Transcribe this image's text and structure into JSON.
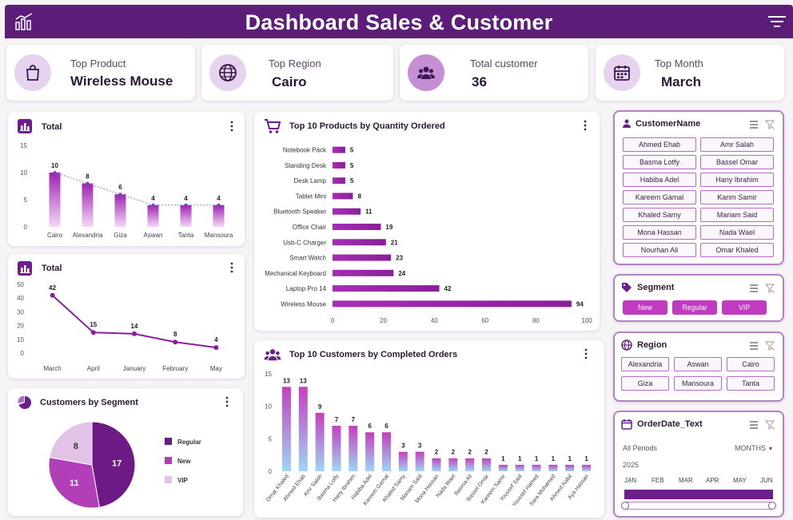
{
  "header": {
    "title": "Dashboard Sales & Customer"
  },
  "kpis": [
    {
      "label": "Top Product",
      "value": "Wireless Mouse",
      "icon": "shopping-bag-icon"
    },
    {
      "label": "Top Region",
      "value": "Cairo",
      "icon": "globe-icon"
    },
    {
      "label": "Total customer",
      "value": "36",
      "icon": "users-icon"
    },
    {
      "label": "Top Month",
      "value": "March",
      "icon": "calendar-icon"
    }
  ],
  "chart_data": [
    {
      "type": "bar",
      "title": "Total",
      "categories": [
        "Cairo",
        "Alexandria",
        "Giza",
        "Aswan",
        "Tanta",
        "Mansoura"
      ],
      "values": [
        10,
        8,
        6,
        4,
        4,
        4
      ],
      "ylim": [
        0,
        15
      ],
      "yticks": [
        0,
        5,
        10,
        15
      ],
      "trend_line": true
    },
    {
      "type": "line",
      "title": "Total",
      "categories": [
        "March",
        "April",
        "January",
        "February",
        "May"
      ],
      "values": [
        42,
        15,
        14,
        8,
        4
      ],
      "ylim": [
        0,
        50
      ],
      "yticks": [
        0,
        10,
        20,
        30,
        40,
        50
      ]
    },
    {
      "type": "pie",
      "title": "Customers by Segment",
      "labels": [
        "Regular",
        "New",
        "VIP"
      ],
      "values": [
        17,
        11,
        8
      ],
      "colors": [
        "#6d1a86",
        "#b13fb7",
        "#e3c2e8"
      ],
      "legend": "right"
    },
    {
      "type": "bar",
      "orientation": "horizontal",
      "title": "Top 10 Products by Quantity Ordered",
      "categories": [
        "Notebook Pack",
        "Standing Desk",
        "Desk Lamp",
        "Tablet Mini",
        "Bluetooth Speaker",
        "Office Chair",
        "Usb-C Charger",
        "Smart Watch",
        "Mechanical Keyboard",
        "Laptop Pro 14",
        "Wireless Mouse"
      ],
      "values": [
        5,
        5,
        5,
        8,
        11,
        19,
        21,
        23,
        24,
        42,
        94
      ],
      "xlim": [
        0,
        100
      ],
      "xticks": [
        0,
        20,
        40,
        60,
        80,
        100
      ]
    },
    {
      "type": "bar",
      "title": "Top 10 Customers by Completed Orders",
      "categories": [
        "Omar Khaled",
        "Ahmed Ehab",
        "Amr Salah",
        "Basma Lotfy",
        "Hany Ibrahim",
        "Habiba Adel",
        "Kareem Gamal",
        "Khaled Samy",
        "Mariam Said",
        "Mona Hassan",
        "Nada Wael",
        "Basma Ali",
        "Bassel Omar",
        "Kareem Samir",
        "Youssef Said",
        "Youssef Hamed",
        "Sara Mohamed",
        "Ahmed Nabil",
        "Aya Hassan"
      ],
      "values": [
        13,
        13,
        9,
        7,
        7,
        6,
        6,
        3,
        3,
        2,
        2,
        2,
        2,
        1,
        1,
        1,
        1,
        1,
        1
      ],
      "ylim": [
        0,
        15
      ],
      "yticks": [
        0,
        5,
        10,
        15
      ]
    }
  ],
  "slicers": {
    "customer": {
      "title": "CustomerName",
      "items": [
        "Ahmed Ehab",
        "Amr Salah",
        "Basma Lotfy",
        "Bassel Omar",
        "Habiba Adel",
        "Hany Ibrahim",
        "Kareem Gamal",
        "Karim Samir",
        "Khaled Samy",
        "Mariam Said",
        "Mona Hassan",
        "Nada Wael",
        "Nourhan Ali",
        "Omar Khaled"
      ]
    },
    "segment": {
      "title": "Segment",
      "items": [
        "New",
        "Regular",
        "VIP"
      ]
    },
    "region": {
      "title": "Region",
      "items": [
        "Alexandria",
        "Aswan",
        "Cairo",
        "Giza",
        "Mansoura",
        "Tanta"
      ]
    },
    "orderdate": {
      "title": "OrderDate_Text",
      "period": "All Periods",
      "granularity": "MONTHS",
      "year": "2025",
      "months": [
        "JAN",
        "FEB",
        "MAR",
        "APR",
        "MAY",
        "JUN"
      ]
    }
  },
  "colors": {
    "header": "#5b1d78",
    "accent": "#6c1f8c",
    "bar": "#a52db5",
    "bar_light": "#f1d6f5"
  }
}
